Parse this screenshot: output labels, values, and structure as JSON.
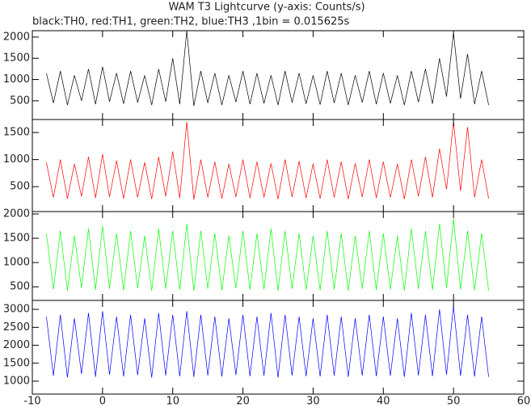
{
  "chart_data": {
    "type": "line",
    "title": "WAM T3 Lightcurve (y-axis: Counts/s)",
    "subtitle": "black:TH0, red:TH1, green:TH2, blue:TH3 ,1bin = 0.015625s",
    "x": [
      -8,
      -7,
      -6,
      -5,
      -4,
      -3,
      -2,
      -1,
      0,
      1,
      2,
      3,
      4,
      5,
      6,
      7,
      8,
      9,
      10,
      11,
      12,
      13,
      14,
      15,
      16,
      17,
      18,
      19,
      20,
      21,
      22,
      23,
      24,
      25,
      26,
      27,
      28,
      29,
      30,
      31,
      32,
      33,
      34,
      35,
      36,
      37,
      38,
      39,
      40,
      41,
      42,
      43,
      44,
      45,
      46,
      47,
      48,
      49,
      50,
      51,
      52,
      53,
      54,
      55
    ],
    "xlim": [
      -10,
      60
    ],
    "xticks": [
      -10,
      0,
      10,
      20,
      30,
      40,
      50,
      60
    ],
    "series": [
      {
        "color": "#000000",
        "ylim": [
          60,
          2150
        ],
        "yticks": [
          500,
          1000,
          1500,
          2000
        ],
        "values": [
          1150,
          450,
          1200,
          400,
          1100,
          500,
          1250,
          420,
          1300,
          480,
          1150,
          430,
          1200,
          460,
          1100,
          400,
          1250,
          480,
          1500,
          420,
          2150,
          380,
          1200,
          450,
          1150,
          400,
          1100,
          470,
          1200,
          420,
          1150,
          440,
          1100,
          400,
          1200,
          460,
          1150,
          430,
          1100,
          410,
          1200,
          450,
          1150,
          400,
          1100,
          460,
          1200,
          420,
          1150,
          440,
          1100,
          400,
          1200,
          470,
          1250,
          430,
          1500,
          600,
          2100,
          550,
          1600,
          420,
          1200,
          400
        ]
      },
      {
        "color": "#ff0000",
        "ylim": [
          40,
          1740
        ],
        "yticks": [
          500,
          1000,
          1500
        ],
        "values": [
          950,
          300,
          1000,
          280,
          920,
          320,
          1050,
          290,
          1100,
          310,
          980,
          280,
          1000,
          300,
          950,
          270,
          1050,
          320,
          1150,
          290,
          1700,
          260,
          1000,
          300,
          960,
          280,
          920,
          310,
          1000,
          290,
          960,
          300,
          930,
          270,
          1000,
          310,
          970,
          290,
          920,
          280,
          1000,
          300,
          960,
          270,
          930,
          310,
          1000,
          290,
          960,
          300,
          920,
          270,
          1000,
          320,
          1050,
          300,
          1200,
          450,
          1700,
          420,
          1600,
          300,
          1000,
          280
        ]
      },
      {
        "color": "#00ff00",
        "ylim": [
          220,
          2050
        ],
        "yticks": [
          500,
          1000,
          1500,
          2000
        ],
        "values": [
          1600,
          450,
          1650,
          420,
          1550,
          480,
          1700,
          440,
          1750,
          460,
          1600,
          430,
          1650,
          470,
          1550,
          420,
          1700,
          460,
          1650,
          440,
          1800,
          420,
          1650,
          460,
          1600,
          430,
          1550,
          470,
          1650,
          440,
          1600,
          450,
          1700,
          420,
          1650,
          460,
          1600,
          440,
          1550,
          430,
          1650,
          450,
          1600,
          420,
          1550,
          460,
          1650,
          440,
          1600,
          450,
          1550,
          420,
          1700,
          460,
          1650,
          440,
          1800,
          480,
          1900,
          450,
          1650,
          430,
          1600,
          420
        ]
      },
      {
        "color": "#0000ff",
        "ylim": [
          640,
          3250
        ],
        "yticks": [
          1000,
          1500,
          2000,
          2500,
          3000
        ],
        "values": [
          2800,
          1150,
          2850,
          1100,
          2750,
          1200,
          2900,
          1120,
          2950,
          1180,
          2800,
          1130,
          2850,
          1170,
          2750,
          1100,
          2900,
          1160,
          2850,
          1140,
          2950,
          1120,
          2850,
          1160,
          2800,
          1130,
          2750,
          1170,
          2850,
          1140,
          2800,
          1150,
          2900,
          1100,
          2850,
          1160,
          2800,
          1140,
          2750,
          1130,
          2850,
          1150,
          2800,
          1120,
          2750,
          1160,
          2850,
          1140,
          2800,
          1150,
          2750,
          1120,
          2900,
          1160,
          2850,
          1140,
          3000,
          1180,
          3100,
          1150,
          2850,
          1130,
          2800,
          1120
        ]
      }
    ]
  }
}
